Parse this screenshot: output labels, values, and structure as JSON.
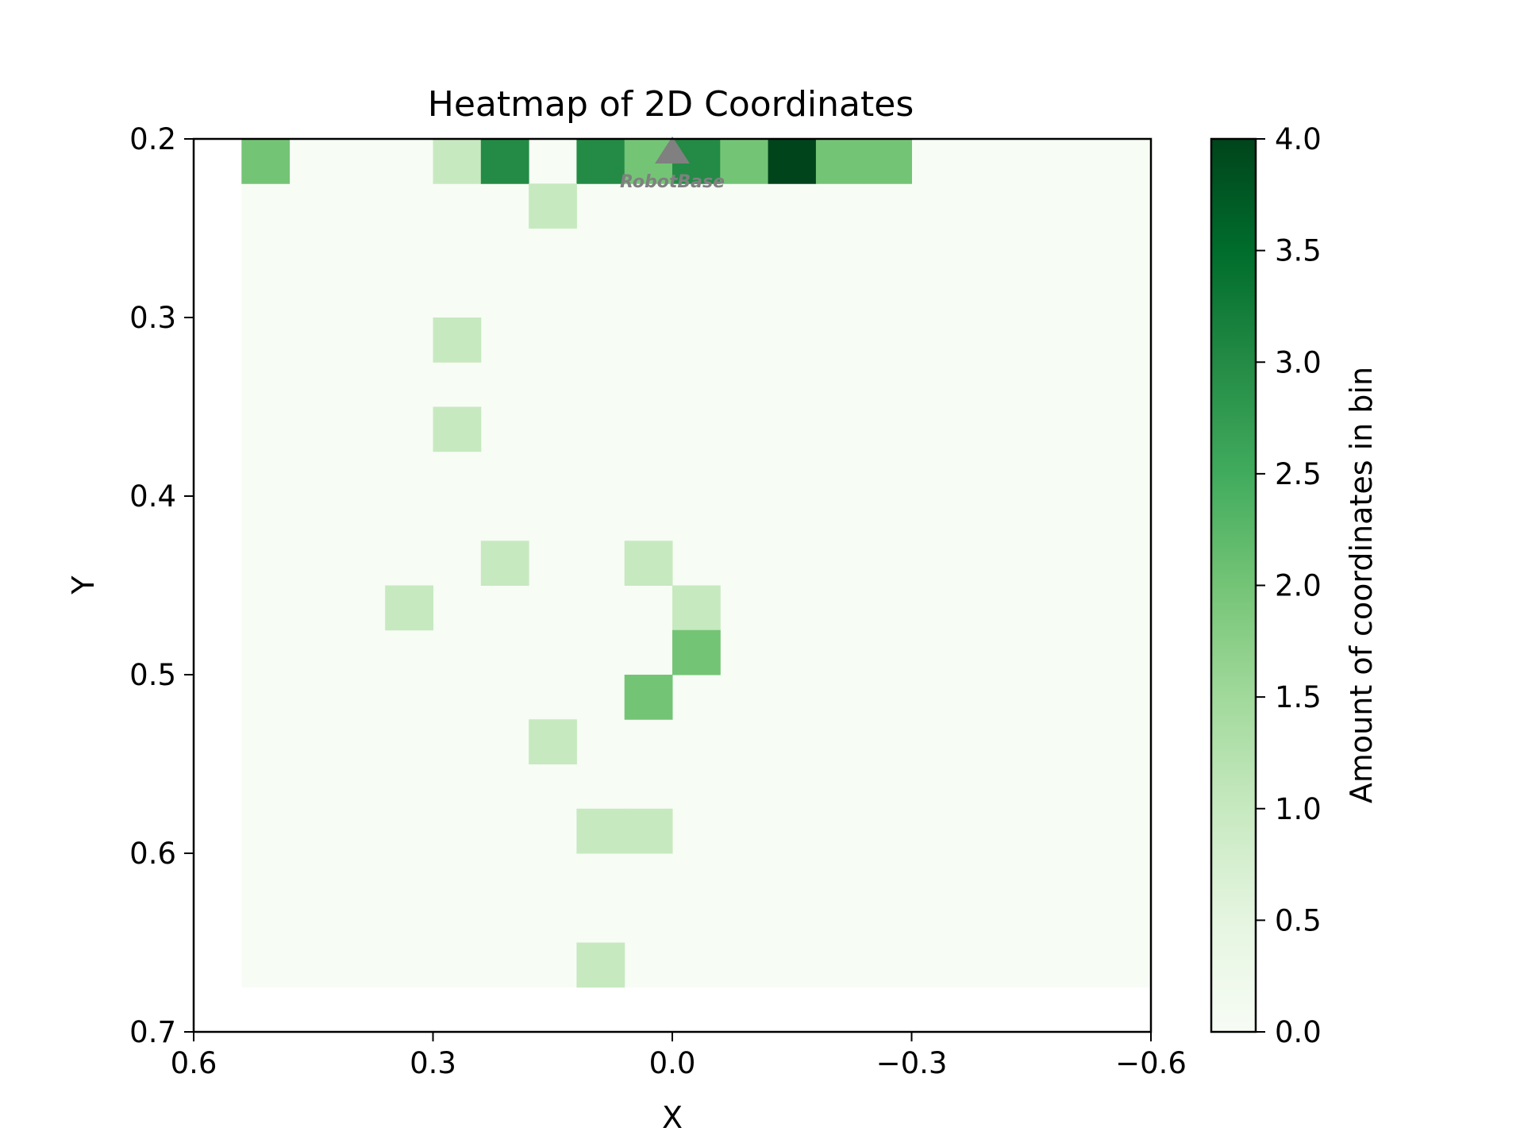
{
  "chart_data": {
    "type": "heatmap",
    "title": "Heatmap of 2D Coordinates",
    "xlabel": "X",
    "ylabel": "Y",
    "xlim": [
      0.6,
      -0.6
    ],
    "ylim": [
      0.7,
      0.2
    ],
    "x_inverted": true,
    "y_inverted": true,
    "x_ticks": [
      {
        "value": 0.6,
        "label": "0.6"
      },
      {
        "value": 0.3,
        "label": "0.3"
      },
      {
        "value": 0.0,
        "label": "0.0"
      },
      {
        "value": -0.3,
        "label": "−0.3"
      },
      {
        "value": -0.6,
        "label": "−0.6"
      }
    ],
    "y_ticks": [
      {
        "value": 0.2,
        "label": "0.2"
      },
      {
        "value": 0.3,
        "label": "0.3"
      },
      {
        "value": 0.4,
        "label": "0.4"
      },
      {
        "value": 0.5,
        "label": "0.5"
      },
      {
        "value": 0.6,
        "label": "0.6"
      },
      {
        "value": 0.7,
        "label": "0.7"
      }
    ],
    "bin_grid": {
      "x_start": 0.54,
      "x_end": -0.6,
      "x_bins": 19,
      "y_start": 0.2,
      "y_end": 0.675,
      "y_bins": 19
    },
    "nonzero_bins": [
      {
        "x": [
          0.54,
          0.48
        ],
        "y": [
          0.2,
          0.225
        ],
        "count": 2
      },
      {
        "x": [
          0.3,
          0.24
        ],
        "y": [
          0.2,
          0.225
        ],
        "count": 1
      },
      {
        "x": [
          0.24,
          0.18
        ],
        "y": [
          0.2,
          0.225
        ],
        "count": 3
      },
      {
        "x": [
          0.12,
          0.06
        ],
        "y": [
          0.2,
          0.225
        ],
        "count": 3
      },
      {
        "x": [
          0.06,
          0.0
        ],
        "y": [
          0.2,
          0.225
        ],
        "count": 2
      },
      {
        "x": [
          0.0,
          -0.06
        ],
        "y": [
          0.2,
          0.225
        ],
        "count": 3
      },
      {
        "x": [
          -0.06,
          -0.12
        ],
        "y": [
          0.2,
          0.225
        ],
        "count": 2
      },
      {
        "x": [
          -0.12,
          -0.18
        ],
        "y": [
          0.2,
          0.225
        ],
        "count": 4
      },
      {
        "x": [
          -0.18,
          -0.24
        ],
        "y": [
          0.2,
          0.225
        ],
        "count": 2
      },
      {
        "x": [
          -0.24,
          -0.3
        ],
        "y": [
          0.2,
          0.225
        ],
        "count": 2
      },
      {
        "x": [
          0.18,
          0.12
        ],
        "y": [
          0.225,
          0.25
        ],
        "count": 1
      },
      {
        "x": [
          0.3,
          0.24
        ],
        "y": [
          0.3,
          0.325
        ],
        "count": 1
      },
      {
        "x": [
          0.3,
          0.24
        ],
        "y": [
          0.35,
          0.375
        ],
        "count": 1
      },
      {
        "x": [
          0.24,
          0.18
        ],
        "y": [
          0.425,
          0.45
        ],
        "count": 1
      },
      {
        "x": [
          0.06,
          0.0
        ],
        "y": [
          0.425,
          0.45
        ],
        "count": 1
      },
      {
        "x": [
          0.36,
          0.3
        ],
        "y": [
          0.45,
          0.475
        ],
        "count": 1
      },
      {
        "x": [
          0.0,
          -0.06
        ],
        "y": [
          0.45,
          0.475
        ],
        "count": 1
      },
      {
        "x": [
          0.0,
          -0.06
        ],
        "y": [
          0.475,
          0.5
        ],
        "count": 2
      },
      {
        "x": [
          0.06,
          0.0
        ],
        "y": [
          0.5,
          0.525
        ],
        "count": 2
      },
      {
        "x": [
          0.18,
          0.12
        ],
        "y": [
          0.525,
          0.55
        ],
        "count": 1
      },
      {
        "x": [
          0.12,
          0.06
        ],
        "y": [
          0.575,
          0.6
        ],
        "count": 1
      },
      {
        "x": [
          0.06,
          0.0
        ],
        "y": [
          0.575,
          0.6
        ],
        "count": 1
      },
      {
        "x": [
          0.12,
          0.06
        ],
        "y": [
          0.65,
          0.675
        ],
        "count": 1
      }
    ],
    "colorbar": {
      "label": "Amount of coordinates in bin",
      "min": 0.0,
      "max": 4.0,
      "colormap": "Greens",
      "ticks": [
        {
          "value": 0.0,
          "label": "0.0"
        },
        {
          "value": 0.5,
          "label": "0.5"
        },
        {
          "value": 1.0,
          "label": "1.0"
        },
        {
          "value": 1.5,
          "label": "1.5"
        },
        {
          "value": 2.0,
          "label": "2.0"
        },
        {
          "value": 2.5,
          "label": "2.5"
        },
        {
          "value": 3.0,
          "label": "3.0"
        },
        {
          "value": 3.5,
          "label": "3.5"
        },
        {
          "value": 4.0,
          "label": "4.0"
        }
      ]
    },
    "annotations": [
      {
        "text": "RobotBase",
        "x": 0.0,
        "y": 0.2,
        "marker": "triangle-up",
        "color": "#808080"
      }
    ],
    "grid": false
  }
}
